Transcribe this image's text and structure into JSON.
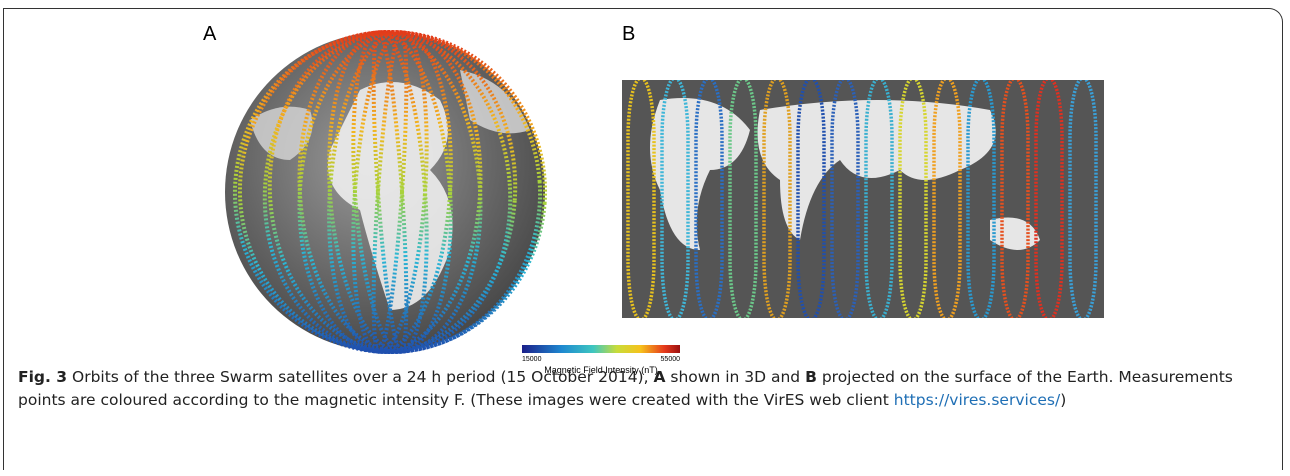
{
  "figure": {
    "panels": [
      {
        "label": "A"
      },
      {
        "label": "B"
      }
    ],
    "colorbar": {
      "min_label": "15000",
      "max_label": "55000",
      "title": "Magnetic Field Intensity (nT)"
    }
  },
  "caption": {
    "figure_label": "Fig. 3",
    "text1": " Orbits of the three Swarm satellites over a 24 h period (15 October 2014), ",
    "ref_a": "A",
    "text2": " shown in 3D and ",
    "ref_b": "B",
    "text3": " projected on the surface of the Earth. Measurements points are coloured according to the magnetic intensity F. (These images were created with the VirES web client ",
    "link": "https://vires.services/",
    "text4": ")"
  }
}
